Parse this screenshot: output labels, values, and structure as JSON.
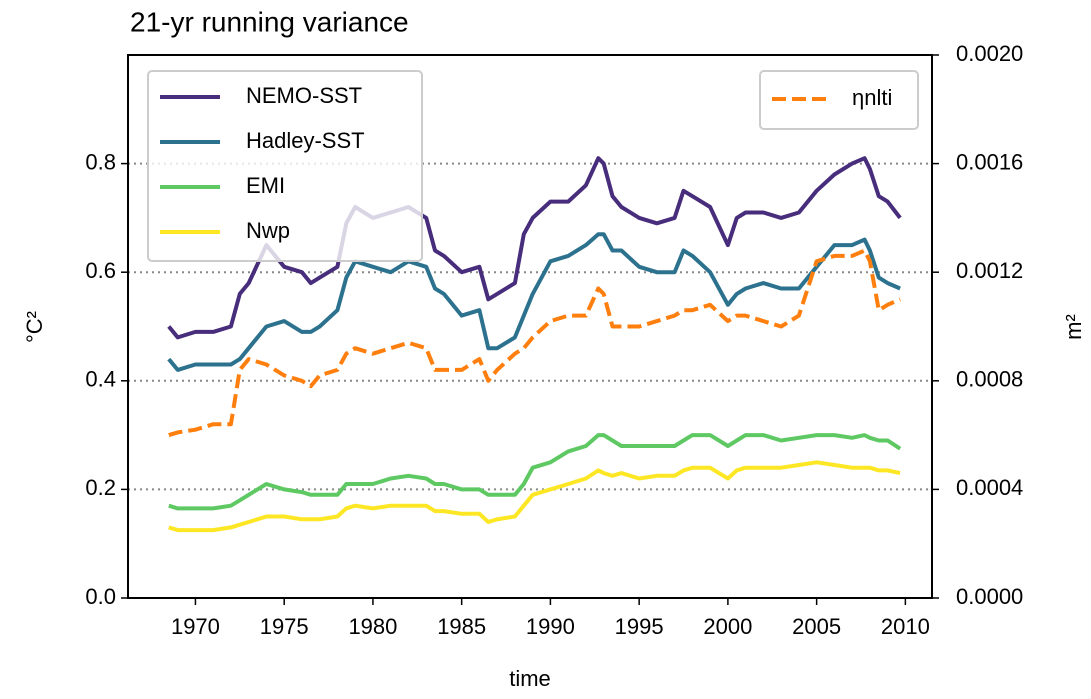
{
  "chart_data": {
    "type": "line",
    "title": "21-yr running variance",
    "xlabel": "time",
    "ylabel": "°C²",
    "y2label": "m²",
    "x": [
      1968.5,
      1969,
      1970,
      1971,
      1972,
      1972.5,
      1973,
      1974,
      1975,
      1976,
      1976.5,
      1977,
      1978,
      1978.5,
      1979,
      1980,
      1981,
      1982,
      1983,
      1983.5,
      1984,
      1985,
      1986,
      1986.5,
      1987,
      1988,
      1988.5,
      1989,
      1990,
      1991,
      1992,
      1992.7,
      1993,
      1993.5,
      1994,
      1995,
      1996,
      1997,
      1997.5,
      1998,
      1999,
      2000,
      2000.5,
      2001,
      2002,
      2003,
      2004,
      2005,
      2006,
      2007,
      2007.7,
      2008,
      2008.5,
      2009,
      2009.7
    ],
    "series": [
      {
        "name": "NEMO-SST",
        "color": "#472d7b",
        "values": [
          0.5,
          0.48,
          0.49,
          0.49,
          0.5,
          0.56,
          0.58,
          0.65,
          0.61,
          0.6,
          0.58,
          0.59,
          0.61,
          0.69,
          0.72,
          0.7,
          0.71,
          0.72,
          0.7,
          0.64,
          0.63,
          0.6,
          0.61,
          0.55,
          0.56,
          0.58,
          0.67,
          0.7,
          0.73,
          0.73,
          0.76,
          0.81,
          0.8,
          0.74,
          0.72,
          0.7,
          0.69,
          0.7,
          0.75,
          0.74,
          0.72,
          0.65,
          0.7,
          0.71,
          0.71,
          0.7,
          0.71,
          0.75,
          0.78,
          0.8,
          0.81,
          0.79,
          0.74,
          0.73,
          0.7
        ]
      },
      {
        "name": "Hadley-SST",
        "color": "#2c728e",
        "values": [
          0.44,
          0.42,
          0.43,
          0.43,
          0.43,
          0.44,
          0.46,
          0.5,
          0.51,
          0.49,
          0.49,
          0.5,
          0.53,
          0.59,
          0.62,
          0.61,
          0.6,
          0.62,
          0.61,
          0.57,
          0.56,
          0.52,
          0.53,
          0.46,
          0.46,
          0.48,
          0.52,
          0.56,
          0.62,
          0.63,
          0.65,
          0.67,
          0.67,
          0.64,
          0.64,
          0.61,
          0.6,
          0.6,
          0.64,
          0.63,
          0.6,
          0.54,
          0.56,
          0.57,
          0.58,
          0.57,
          0.57,
          0.61,
          0.65,
          0.65,
          0.66,
          0.64,
          0.59,
          0.58,
          0.57
        ]
      },
      {
        "name": "EMI",
        "color": "#5ec962",
        "values": [
          0.17,
          0.165,
          0.165,
          0.165,
          0.17,
          0.18,
          0.19,
          0.21,
          0.2,
          0.195,
          0.19,
          0.19,
          0.19,
          0.21,
          0.21,
          0.21,
          0.22,
          0.225,
          0.22,
          0.21,
          0.21,
          0.2,
          0.2,
          0.19,
          0.19,
          0.19,
          0.21,
          0.24,
          0.25,
          0.27,
          0.28,
          0.3,
          0.3,
          0.29,
          0.28,
          0.28,
          0.28,
          0.28,
          0.29,
          0.3,
          0.3,
          0.28,
          0.29,
          0.3,
          0.3,
          0.29,
          0.295,
          0.3,
          0.3,
          0.295,
          0.3,
          0.295,
          0.29,
          0.29,
          0.275
        ]
      },
      {
        "name": "Nwp",
        "color": "#fde725",
        "values": [
          0.13,
          0.125,
          0.125,
          0.125,
          0.13,
          0.135,
          0.14,
          0.15,
          0.15,
          0.145,
          0.145,
          0.145,
          0.15,
          0.165,
          0.17,
          0.165,
          0.17,
          0.17,
          0.17,
          0.16,
          0.16,
          0.155,
          0.155,
          0.14,
          0.145,
          0.15,
          0.17,
          0.19,
          0.2,
          0.21,
          0.22,
          0.235,
          0.23,
          0.225,
          0.23,
          0.22,
          0.225,
          0.225,
          0.235,
          0.24,
          0.24,
          0.22,
          0.235,
          0.24,
          0.24,
          0.24,
          0.245,
          0.25,
          0.245,
          0.24,
          0.24,
          0.24,
          0.235,
          0.235,
          0.23
        ]
      },
      {
        "name": "ηnlti",
        "color": "#ff7f0e",
        "axis": "y2",
        "dashed": true,
        "values": [
          0.0006,
          0.00061,
          0.00062,
          0.00064,
          0.00064,
          0.00084,
          0.00088,
          0.00086,
          0.00082,
          0.0008,
          0.00078,
          0.00082,
          0.00084,
          0.0009,
          0.00092,
          0.0009,
          0.00092,
          0.00094,
          0.00092,
          0.00084,
          0.00084,
          0.00084,
          0.00088,
          0.0008,
          0.00084,
          0.0009,
          0.00092,
          0.00096,
          0.00102,
          0.00104,
          0.00104,
          0.00114,
          0.00112,
          0.001,
          0.001,
          0.001,
          0.00102,
          0.00104,
          0.00106,
          0.00106,
          0.00108,
          0.00102,
          0.00104,
          0.00104,
          0.00102,
          0.001,
          0.00104,
          0.00124,
          0.00126,
          0.00126,
          0.00128,
          0.00124,
          0.00106,
          0.00108,
          0.0011
        ]
      }
    ],
    "xlim": [
      1966.2,
      2011.5
    ],
    "xticks": [
      1970,
      1975,
      1980,
      1985,
      1990,
      1995,
      2000,
      2005,
      2010
    ],
    "ylim": [
      0,
      1.0
    ],
    "yticks": [
      {
        "value": 0,
        "label": "0.0"
      },
      0.2,
      0.4,
      0.6,
      0.8
    ],
    "y2lim": [
      0,
      0.002
    ],
    "y2ticks": [
      {
        "value": 0,
        "label": "0.0000"
      },
      {
        "value": 0.0004,
        "label": "0.0004"
      },
      {
        "value": 0.0008,
        "label": "0.0008"
      },
      {
        "value": 0.0012,
        "label": "0.0012"
      },
      {
        "value": 0.0016,
        "label": "0.0016"
      },
      {
        "value": 0.002,
        "label": "0.0020"
      }
    ],
    "grid": true
  }
}
